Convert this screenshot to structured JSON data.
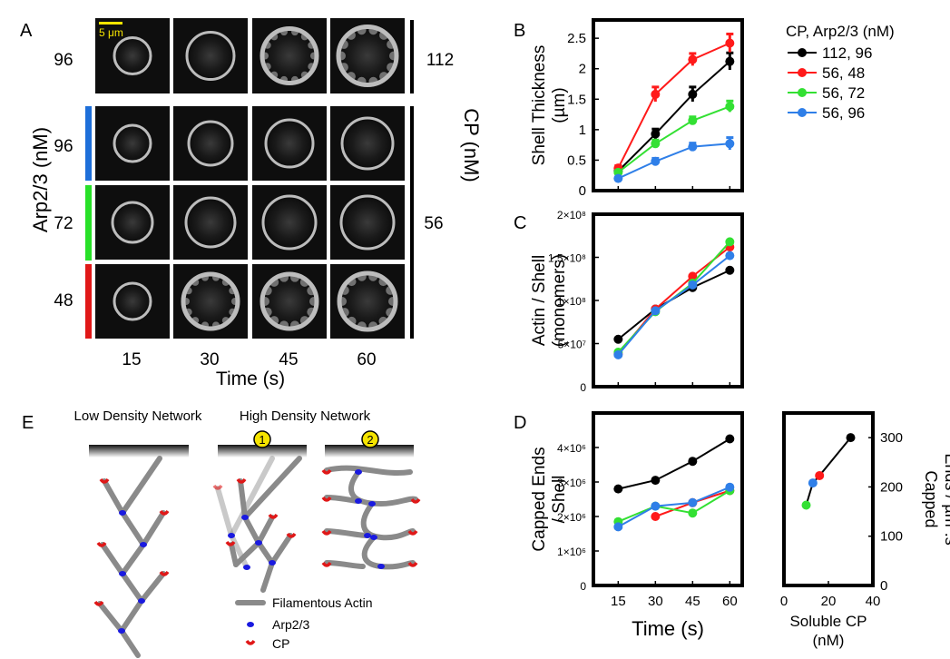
{
  "panel_letters": {
    "a": "A",
    "b": "B",
    "c": "C",
    "d": "D",
    "e": "E"
  },
  "panel_a": {
    "scale_bar": "5 μm",
    "arp_axis_label": "Arp2/3 (nM)",
    "cp_axis_label": "CP (nM)",
    "row_labels": [
      "96",
      "96",
      "72",
      "48"
    ],
    "cp_values": [
      "112",
      "56"
    ],
    "time_labels": [
      "15",
      "30",
      "45",
      "60"
    ],
    "time_axis_label": "Time (s)",
    "row_bar_colors": [
      "#1e6fd9",
      "#28e028",
      "#e01818"
    ]
  },
  "legend": {
    "title": "CP, Arp2/3 (nM)",
    "entries": [
      {
        "label": "112, 96",
        "color": "#000000"
      },
      {
        "label": "56, 48",
        "color": "#ff1a1a"
      },
      {
        "label": "56, 72",
        "color": "#33e033"
      },
      {
        "label": "56, 96",
        "color": "#2f7fe8"
      }
    ]
  },
  "chart_data": [
    {
      "panel": "B",
      "type": "line",
      "ylabel": "Shell Thickness (µm)",
      "x": [
        15,
        30,
        45,
        60
      ],
      "xlim": [
        5,
        65
      ],
      "ylim": [
        0,
        2.8
      ],
      "yticks": [
        "0",
        "0.5",
        "1",
        "1.5",
        "2",
        "2.5"
      ],
      "series": [
        {
          "name": "112, 96",
          "color": "#000000",
          "x": [
            15,
            30,
            45,
            60
          ],
          "values": [
            0.32,
            0.93,
            1.58,
            2.12
          ],
          "err": [
            0.03,
            0.08,
            0.12,
            0.14
          ]
        },
        {
          "name": "56, 48",
          "color": "#ff1a1a",
          "x": [
            15,
            30,
            45,
            60
          ],
          "values": [
            0.37,
            1.58,
            2.15,
            2.42
          ],
          "err": [
            0.04,
            0.12,
            0.1,
            0.15
          ]
        },
        {
          "name": "56, 72",
          "color": "#33e033",
          "x": [
            15,
            30,
            45,
            60
          ],
          "values": [
            0.3,
            0.77,
            1.15,
            1.38
          ],
          "err": [
            0.03,
            0.06,
            0.06,
            0.09
          ]
        },
        {
          "name": "56, 96",
          "color": "#2f7fe8",
          "x": [
            15,
            30,
            45,
            60
          ],
          "values": [
            0.2,
            0.48,
            0.72,
            0.77
          ],
          "err": [
            0.02,
            0.05,
            0.06,
            0.1
          ]
        }
      ]
    },
    {
      "panel": "C",
      "type": "line",
      "ylabel": "Actin / Shell (monomers)",
      "x": [
        15,
        30,
        45,
        60
      ],
      "xlim": [
        5,
        65
      ],
      "ylim": [
        0,
        200000000
      ],
      "yticks": [
        "0",
        "5×10⁷",
        "1×10⁸",
        "1.5×10⁸",
        "2×10⁸"
      ],
      "series": [
        {
          "name": "112, 96",
          "color": "#000000",
          "x": [
            15,
            30,
            45,
            60
          ],
          "values": [
            55000000,
            90000000,
            115000000,
            135000000
          ]
        },
        {
          "name": "56, 48",
          "color": "#ff1a1a",
          "x": [
            15,
            30,
            45,
            60
          ],
          "values": [
            38000000,
            90000000,
            128000000,
            162000000
          ]
        },
        {
          "name": "56, 72",
          "color": "#33e033",
          "x": [
            15,
            30,
            45,
            60
          ],
          "values": [
            40000000,
            87000000,
            120000000,
            168000000
          ]
        },
        {
          "name": "56, 96",
          "color": "#2f7fe8",
          "x": [
            15,
            30,
            45,
            60
          ],
          "values": [
            37000000,
            88000000,
            118000000,
            152000000
          ]
        }
      ]
    },
    {
      "panel": "D",
      "type": "line",
      "ylabel": "Capped Ends / Shell",
      "xlabel": "Time (s)",
      "x": [
        15,
        30,
        45,
        60
      ],
      "xlim": [
        5,
        65
      ],
      "ylim": [
        0,
        5000000
      ],
      "xticks": [
        "15",
        "30",
        "45",
        "60"
      ],
      "yticks": [
        "0",
        "1×10⁶",
        "2×10⁶",
        "3×10⁶",
        "4×10⁶"
      ],
      "series": [
        {
          "name": "112, 96",
          "color": "#000000",
          "x": [
            15,
            30,
            45,
            60
          ],
          "values": [
            2800000,
            3050000,
            3600000,
            4250000
          ]
        },
        {
          "name": "56, 48",
          "color": "#ff1a1a",
          "x": [
            30,
            45,
            60
          ],
          "values": [
            2000000,
            2400000,
            2750000
          ]
        },
        {
          "name": "56, 72",
          "color": "#33e033",
          "x": [
            15,
            30,
            45,
            60
          ],
          "values": [
            1850000,
            2300000,
            2100000,
            2750000
          ]
        },
        {
          "name": "56, 96",
          "color": "#2f7fe8",
          "x": [
            15,
            30,
            45,
            60
          ],
          "values": [
            1700000,
            2300000,
            2400000,
            2850000
          ]
        }
      ]
    },
    {
      "panel": "D-right",
      "type": "scatter",
      "xlabel": "Soluble CP (nM)",
      "ylabel": "Capped Ends / µm².s",
      "xlim": [
        0,
        40
      ],
      "ylim": [
        0,
        350
      ],
      "xticks": [
        "0",
        "20",
        "40"
      ],
      "yticks": [
        "0",
        "100",
        "200",
        "300"
      ],
      "points": [
        {
          "x": 10,
          "y": 163,
          "color": "#33e033"
        },
        {
          "x": 13,
          "y": 208,
          "color": "#2f7fe8"
        },
        {
          "x": 16,
          "y": 223,
          "color": "#ff1a1a"
        },
        {
          "x": 30,
          "y": 300,
          "color": "#000000"
        }
      ]
    }
  ],
  "panel_e": {
    "low_title": "Low Density Network",
    "high_title": "High Density Network",
    "badges": [
      "1",
      "2"
    ],
    "legend": [
      {
        "label": "Filamentous Actin",
        "color": "#8a8a8a"
      },
      {
        "label": "Arp2/3",
        "color": "#1a1ae0"
      },
      {
        "label": "CP",
        "color": "#e01818"
      }
    ]
  }
}
